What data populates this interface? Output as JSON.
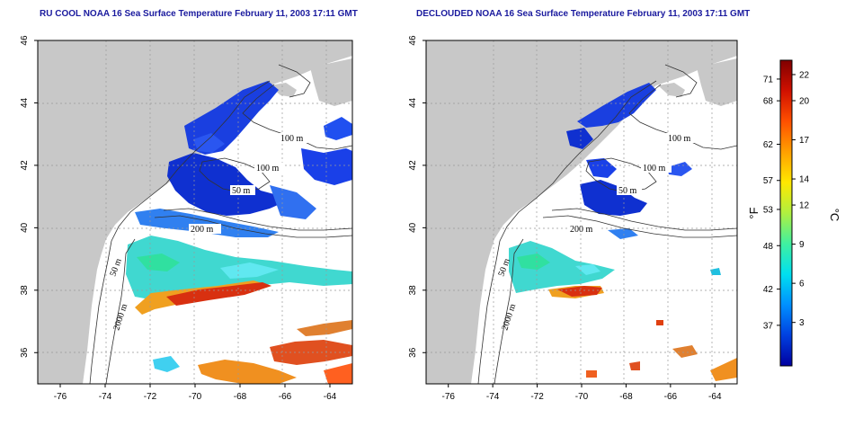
{
  "maps": [
    {
      "title": "RU COOL NOAA 16 Sea Surface Temperature February 11, 2003 17:11 GMT",
      "variant": "raw"
    },
    {
      "title": "DECLOUDED NOAA 16 Sea Surface Temperature February 11, 2003 17:11 GMT",
      "variant": "declouded"
    }
  ],
  "axes": {
    "lon_range": [
      -77,
      -63
    ],
    "lat_range": [
      35,
      46
    ],
    "lon_ticks": [
      "-76",
      "-74",
      "-72",
      "-70",
      "-68",
      "-66",
      "-64"
    ],
    "lat_ticks": [
      "36",
      "38",
      "40",
      "42",
      "44",
      "46"
    ]
  },
  "contour_labels": [
    "100 m",
    "100 m",
    "50 m",
    "200 m",
    "50 m",
    "2000 m"
  ],
  "colorbar": {
    "fahrenheit_unit": "°F",
    "celsius_unit": "°C",
    "fahrenheit_ticks": [
      "71",
      "68",
      "62",
      "57",
      "53",
      "48",
      "42",
      "37"
    ],
    "celsius_ticks": [
      "22",
      "20",
      "17",
      "14",
      "12",
      "9",
      "6",
      "3"
    ],
    "colors": [
      "#800000",
      "#d01000",
      "#ff5000",
      "#ffa000",
      "#ffe800",
      "#b0f040",
      "#40f0a0",
      "#00e0f0",
      "#0090ff",
      "#0040e0",
      "#0000a0"
    ]
  },
  "colors": {
    "land": "#c8c8c8",
    "ocean": "#ffffff",
    "title": "#1a1a9e"
  }
}
